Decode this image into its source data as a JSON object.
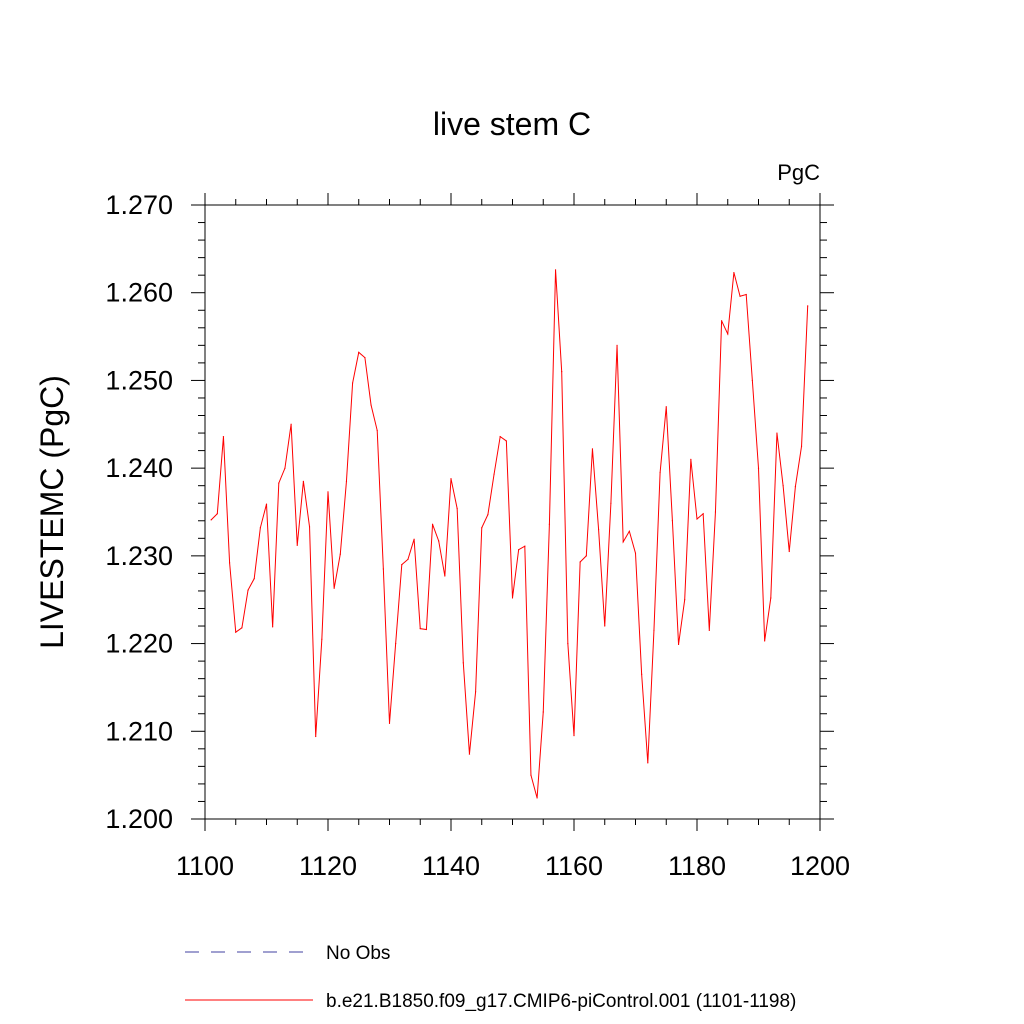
{
  "chart_data": {
    "type": "line",
    "title": "live stem C",
    "units_label": "PgC",
    "ylabel": "LIVESTEMC  (PgC)",
    "xlabel": "",
    "xlim": [
      1100,
      1200
    ],
    "ylim": [
      1.2,
      1.27
    ],
    "x_ticks": [
      1100,
      1120,
      1140,
      1160,
      1180,
      1200
    ],
    "x_tick_labels": [
      "1100",
      "1120",
      "1140",
      "1160",
      "1180",
      "1200"
    ],
    "y_ticks": [
      1.2,
      1.21,
      1.22,
      1.23,
      1.24,
      1.25,
      1.26,
      1.27
    ],
    "y_tick_labels": [
      "1.200",
      "1.210",
      "1.220",
      "1.230",
      "1.240",
      "1.250",
      "1.260",
      "1.270"
    ],
    "grid": false,
    "legend_placement": "bottom",
    "series": [
      {
        "name": "No Obs",
        "color": "#4040a0",
        "style": "dashed",
        "x": [],
        "y": []
      },
      {
        "name": "b.e21.B1850.f09_g17.CMIP6-piControl.001 (1101-1198)",
        "color": "#ff0000",
        "style": "solid",
        "x": [
          1101,
          1102,
          1103,
          1104,
          1105,
          1106,
          1107,
          1108,
          1109,
          1110,
          1111,
          1112,
          1113,
          1114,
          1115,
          1116,
          1117,
          1118,
          1119,
          1120,
          1121,
          1122,
          1123,
          1124,
          1125,
          1126,
          1127,
          1128,
          1129,
          1130,
          1131,
          1132,
          1133,
          1134,
          1135,
          1136,
          1137,
          1138,
          1139,
          1140,
          1141,
          1142,
          1143,
          1144,
          1145,
          1146,
          1147,
          1148,
          1149,
          1150,
          1151,
          1152,
          1153,
          1154,
          1155,
          1156,
          1157,
          1158,
          1159,
          1160,
          1161,
          1162,
          1163,
          1164,
          1165,
          1166,
          1167,
          1168,
          1169,
          1170,
          1171,
          1172,
          1173,
          1174,
          1175,
          1176,
          1177,
          1178,
          1179,
          1180,
          1181,
          1182,
          1183,
          1184,
          1185,
          1186,
          1187,
          1188,
          1189,
          1190,
          1191,
          1192,
          1193,
          1194,
          1195,
          1196,
          1197,
          1198
        ],
        "y": [
          1.2341,
          1.2348,
          1.2436,
          1.2292,
          1.2213,
          1.2218,
          1.2261,
          1.2274,
          1.2332,
          1.2359,
          1.2219,
          1.2383,
          1.24,
          1.245,
          1.2312,
          1.2385,
          1.2333,
          1.2094,
          1.2205,
          1.2373,
          1.2263,
          1.2302,
          1.2385,
          1.2497,
          1.2532,
          1.2526,
          1.2472,
          1.2443,
          1.2285,
          1.2109,
          1.22,
          1.229,
          1.2296,
          1.2319,
          1.2217,
          1.2216,
          1.2336,
          1.2317,
          1.2277,
          1.2388,
          1.2354,
          1.2178,
          1.2074,
          1.2145,
          1.2332,
          1.2347,
          1.2393,
          1.2436,
          1.2431,
          1.2252,
          1.2307,
          1.2311,
          1.205,
          1.2024,
          1.2122,
          1.2336,
          1.2626,
          1.251,
          1.22,
          1.2095,
          1.2293,
          1.23,
          1.2422,
          1.233,
          1.222,
          1.236,
          1.254,
          1.2316,
          1.2328,
          1.2303,
          1.2165,
          1.2064,
          1.2215,
          1.2395,
          1.247,
          1.234,
          1.2199,
          1.225,
          1.241,
          1.2342,
          1.2348,
          1.2215,
          1.235,
          1.2568,
          1.2553,
          1.2623,
          1.2596,
          1.2598,
          1.25,
          1.24,
          1.2203,
          1.2252,
          1.244,
          1.238,
          1.2305,
          1.2379,
          1.2425,
          1.2585
        ]
      }
    ]
  }
}
